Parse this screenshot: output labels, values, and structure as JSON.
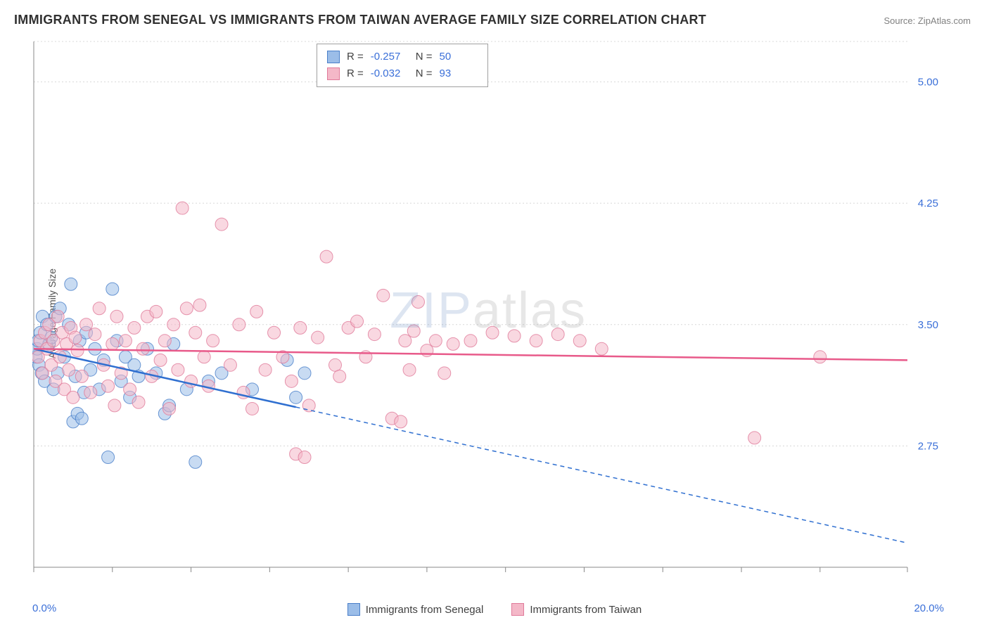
{
  "title": "IMMIGRANTS FROM SENEGAL VS IMMIGRANTS FROM TAIWAN AVERAGE FAMILY SIZE CORRELATION CHART",
  "source": "Source: ZipAtlas.com",
  "ylabel": "Average Family Size",
  "watermark": {
    "part1": "ZIP",
    "part2": "atlas"
  },
  "chart": {
    "type": "scatter",
    "background_color": "#ffffff",
    "grid_color": "#d8d8d8",
    "axis_color": "#888888",
    "xlim": [
      0,
      20
    ],
    "ylim": [
      2.0,
      5.25
    ],
    "xtick_positions": [
      0,
      1.8,
      3.6,
      5.4,
      7.2,
      9.0,
      10.8,
      12.6,
      14.4,
      16.2,
      18.0,
      20.0
    ],
    "ytick_values": [
      2.75,
      3.5,
      4.25,
      5.0
    ],
    "ytick_labels": [
      "2.75",
      "3.50",
      "4.25",
      "5.00"
    ],
    "ytick_color": "#3a6fd8",
    "xaxis_label_min": "0.0%",
    "xaxis_label_max": "20.0%",
    "marker_radius": 9,
    "marker_opacity": 0.55,
    "line_width": 2.5,
    "dash_pattern": "6,5",
    "series": [
      {
        "name": "Immigrants from Senegal",
        "fill_color": "#9bbde8",
        "stroke_color": "#4a7fc9",
        "line_color": "#2f6fd0",
        "R": "-0.257",
        "N": "50",
        "regression": {
          "x1": 0,
          "y1": 3.35,
          "x2": 20,
          "y2": 2.15,
          "solid_until_x": 6.0
        },
        "points": [
          [
            0.05,
            3.3
          ],
          [
            0.08,
            3.35
          ],
          [
            0.1,
            3.4
          ],
          [
            0.12,
            3.25
          ],
          [
            0.15,
            3.45
          ],
          [
            0.18,
            3.2
          ],
          [
            0.2,
            3.55
          ],
          [
            0.25,
            3.15
          ],
          [
            0.3,
            3.5
          ],
          [
            0.35,
            3.38
          ],
          [
            0.4,
            3.42
          ],
          [
            0.45,
            3.1
          ],
          [
            0.5,
            3.55
          ],
          [
            0.55,
            3.2
          ],
          [
            0.6,
            3.6
          ],
          [
            0.7,
            3.3
          ],
          [
            0.8,
            3.5
          ],
          [
            0.85,
            3.75
          ],
          [
            0.9,
            2.9
          ],
          [
            0.95,
            3.18
          ],
          [
            1.0,
            2.95
          ],
          [
            1.05,
            3.4
          ],
          [
            1.1,
            2.92
          ],
          [
            1.15,
            3.08
          ],
          [
            1.2,
            3.45
          ],
          [
            1.3,
            3.22
          ],
          [
            1.4,
            3.35
          ],
          [
            1.5,
            3.1
          ],
          [
            1.6,
            3.28
          ],
          [
            1.7,
            2.68
          ],
          [
            1.8,
            3.72
          ],
          [
            1.9,
            3.4
          ],
          [
            2.0,
            3.15
          ],
          [
            2.1,
            3.3
          ],
          [
            2.2,
            3.05
          ],
          [
            2.3,
            3.25
          ],
          [
            2.4,
            3.18
          ],
          [
            2.6,
            3.35
          ],
          [
            2.8,
            3.2
          ],
          [
            3.0,
            2.95
          ],
          [
            3.1,
            3.0
          ],
          [
            3.2,
            3.38
          ],
          [
            3.5,
            3.1
          ],
          [
            3.7,
            2.65
          ],
          [
            4.0,
            3.15
          ],
          [
            4.3,
            3.2
          ],
          [
            5.0,
            3.1
          ],
          [
            5.8,
            3.28
          ],
          [
            6.0,
            3.05
          ],
          [
            6.2,
            3.2
          ]
        ]
      },
      {
        "name": "Immigrants from Taiwan",
        "fill_color": "#f4b8c8",
        "stroke_color": "#e07a9a",
        "line_color": "#e85a8a",
        "R": "-0.032",
        "N": "93",
        "regression": {
          "x1": 0,
          "y1": 3.35,
          "x2": 20,
          "y2": 3.28,
          "solid_until_x": 20
        },
        "points": [
          [
            0.1,
            3.3
          ],
          [
            0.15,
            3.4
          ],
          [
            0.2,
            3.2
          ],
          [
            0.25,
            3.45
          ],
          [
            0.3,
            3.35
          ],
          [
            0.35,
            3.5
          ],
          [
            0.4,
            3.25
          ],
          [
            0.45,
            3.4
          ],
          [
            0.5,
            3.15
          ],
          [
            0.55,
            3.55
          ],
          [
            0.6,
            3.3
          ],
          [
            0.65,
            3.45
          ],
          [
            0.7,
            3.1
          ],
          [
            0.75,
            3.38
          ],
          [
            0.8,
            3.22
          ],
          [
            0.85,
            3.48
          ],
          [
            0.9,
            3.05
          ],
          [
            0.95,
            3.42
          ],
          [
            1.0,
            3.34
          ],
          [
            1.1,
            3.18
          ],
          [
            1.2,
            3.5
          ],
          [
            1.3,
            3.08
          ],
          [
            1.4,
            3.44
          ],
          [
            1.5,
            3.6
          ],
          [
            1.6,
            3.25
          ],
          [
            1.7,
            3.12
          ],
          [
            1.8,
            3.38
          ],
          [
            1.85,
            3.0
          ],
          [
            1.9,
            3.55
          ],
          [
            2.0,
            3.2
          ],
          [
            2.1,
            3.4
          ],
          [
            2.2,
            3.1
          ],
          [
            2.3,
            3.48
          ],
          [
            2.4,
            3.02
          ],
          [
            2.5,
            3.35
          ],
          [
            2.6,
            3.55
          ],
          [
            2.7,
            3.18
          ],
          [
            2.8,
            3.58
          ],
          [
            2.9,
            3.28
          ],
          [
            3.0,
            3.4
          ],
          [
            3.1,
            2.98
          ],
          [
            3.2,
            3.5
          ],
          [
            3.3,
            3.22
          ],
          [
            3.4,
            4.22
          ],
          [
            3.5,
            3.6
          ],
          [
            3.6,
            3.15
          ],
          [
            3.7,
            3.45
          ],
          [
            3.8,
            3.62
          ],
          [
            3.9,
            3.3
          ],
          [
            4.0,
            3.12
          ],
          [
            4.1,
            3.4
          ],
          [
            4.3,
            4.12
          ],
          [
            4.5,
            3.25
          ],
          [
            4.7,
            3.5
          ],
          [
            4.8,
            3.08
          ],
          [
            5.0,
            2.98
          ],
          [
            5.1,
            3.58
          ],
          [
            5.3,
            3.22
          ],
          [
            5.5,
            3.45
          ],
          [
            5.7,
            3.3
          ],
          [
            5.9,
            3.15
          ],
          [
            6.0,
            2.7
          ],
          [
            6.1,
            3.48
          ],
          [
            6.2,
            2.68
          ],
          [
            6.3,
            3.0
          ],
          [
            6.5,
            3.42
          ],
          [
            6.7,
            3.92
          ],
          [
            6.9,
            3.25
          ],
          [
            7.0,
            3.18
          ],
          [
            7.2,
            3.48
          ],
          [
            7.4,
            3.52
          ],
          [
            7.6,
            3.3
          ],
          [
            7.8,
            3.44
          ],
          [
            8.0,
            3.68
          ],
          [
            8.2,
            2.92
          ],
          [
            8.4,
            2.9
          ],
          [
            8.5,
            3.4
          ],
          [
            8.6,
            3.22
          ],
          [
            8.7,
            3.46
          ],
          [
            8.8,
            3.64
          ],
          [
            9.0,
            3.34
          ],
          [
            9.2,
            3.4
          ],
          [
            9.4,
            3.2
          ],
          [
            9.6,
            3.38
          ],
          [
            10.0,
            3.4
          ],
          [
            10.5,
            3.45
          ],
          [
            11.0,
            3.43
          ],
          [
            11.5,
            3.4
          ],
          [
            12.0,
            3.44
          ],
          [
            12.5,
            3.4
          ],
          [
            13.0,
            3.35
          ],
          [
            16.5,
            2.8
          ],
          [
            18.0,
            3.3
          ]
        ]
      }
    ]
  },
  "legend": {
    "series1_label": "Immigrants from Senegal",
    "series2_label": "Immigrants from Taiwan"
  }
}
